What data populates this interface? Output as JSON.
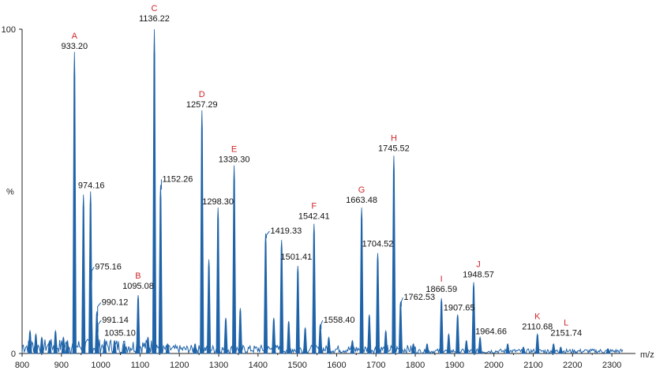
{
  "chart_data": {
    "type": "line",
    "title": "",
    "xlabel": "m/z",
    "ylabel": "%",
    "xlim": [
      800,
      2340
    ],
    "ylim": [
      0,
      100
    ],
    "x_ticks": [
      800,
      900,
      1000,
      1100,
      1200,
      1300,
      1400,
      1500,
      1600,
      1700,
      1800,
      1900,
      2000,
      2100,
      2200,
      2300
    ],
    "y_ticks": [
      0,
      100
    ],
    "y_mid_label": "%",
    "colors": {
      "trace": "#1f63a8",
      "letter": "#d0262b",
      "axis": "#222222"
    },
    "peaks": [
      {
        "mz": 933.2,
        "label": "933.20",
        "letter": "A",
        "intensity": 93
      },
      {
        "mz": 956.0,
        "label": "",
        "letter": "",
        "intensity": 49
      },
      {
        "mz": 974.16,
        "label": "974.16",
        "letter": "",
        "intensity": 50
      },
      {
        "mz": 975.16,
        "label": "975.16",
        "letter": "",
        "intensity": 24
      },
      {
        "mz": 990.12,
        "label": "990.12",
        "letter": "",
        "intensity": 13
      },
      {
        "mz": 991.14,
        "label": "991.14",
        "letter": "",
        "intensity": 8
      },
      {
        "mz": 1035.1,
        "label": "1035.10",
        "letter": "",
        "intensity": 4
      },
      {
        "mz": 1095.08,
        "label": "1095.08",
        "letter": "B",
        "intensity": 18
      },
      {
        "mz": 1136.22,
        "label": "1136.22",
        "letter": "C",
        "intensity": 100
      },
      {
        "mz": 1152.26,
        "label": "1152.26",
        "letter": "",
        "intensity": 52
      },
      {
        "mz": 1257.29,
        "label": "1257.29",
        "letter": "D",
        "intensity": 75
      },
      {
        "mz": 1275.0,
        "label": "",
        "letter": "",
        "intensity": 29
      },
      {
        "mz": 1298.3,
        "label": "1298.30",
        "letter": "",
        "intensity": 45
      },
      {
        "mz": 1339.3,
        "label": "1339.30",
        "letter": "E",
        "intensity": 58
      },
      {
        "mz": 1419.33,
        "label": "1419.33",
        "letter": "",
        "intensity": 37
      },
      {
        "mz": 1460.0,
        "label": "",
        "letter": "",
        "intensity": 35
      },
      {
        "mz": 1501.41,
        "label": "1501.41",
        "letter": "",
        "intensity": 27
      },
      {
        "mz": 1542.41,
        "label": "1542.41",
        "letter": "F",
        "intensity": 40
      },
      {
        "mz": 1558.4,
        "label": "1558.40",
        "letter": "",
        "intensity": 9
      },
      {
        "mz": 1663.48,
        "label": "1663.48",
        "letter": "G",
        "intensity": 45
      },
      {
        "mz": 1704.52,
        "label": "1704.52",
        "letter": "",
        "intensity": 31
      },
      {
        "mz": 1745.52,
        "label": "1745.52",
        "letter": "H",
        "intensity": 61
      },
      {
        "mz": 1762.53,
        "label": "1762.53",
        "letter": "",
        "intensity": 16
      },
      {
        "mz": 1866.59,
        "label": "1866.59",
        "letter": "I",
        "intensity": 17
      },
      {
        "mz": 1907.65,
        "label": "1907.65",
        "letter": "",
        "intensity": 12
      },
      {
        "mz": 1948.57,
        "label": "1948.57",
        "letter": "J",
        "intensity": 22
      },
      {
        "mz": 1964.66,
        "label": "1964.66",
        "letter": "",
        "intensity": 5
      },
      {
        "mz": 2110.68,
        "label": "2110.68",
        "letter": "K",
        "intensity": 6
      },
      {
        "mz": 2151.74,
        "label": "2151.74",
        "letter": "L",
        "intensity": 3
      }
    ],
    "minor_peaks": [
      {
        "mz": 820,
        "intensity": 7
      },
      {
        "mz": 835,
        "intensity": 6
      },
      {
        "mz": 850,
        "intensity": 5
      },
      {
        "mz": 870,
        "intensity": 4
      },
      {
        "mz": 885,
        "intensity": 7
      },
      {
        "mz": 905,
        "intensity": 5
      },
      {
        "mz": 915,
        "intensity": 4
      },
      {
        "mz": 1010,
        "intensity": 4
      },
      {
        "mz": 1060,
        "intensity": 3
      },
      {
        "mz": 1120,
        "intensity": 5
      },
      {
        "mz": 1170,
        "intensity": 3
      },
      {
        "mz": 1240,
        "intensity": 3
      },
      {
        "mz": 1318,
        "intensity": 11
      },
      {
        "mz": 1355,
        "intensity": 14
      },
      {
        "mz": 1440,
        "intensity": 11
      },
      {
        "mz": 1478,
        "intensity": 10
      },
      {
        "mz": 1520,
        "intensity": 8
      },
      {
        "mz": 1580,
        "intensity": 5
      },
      {
        "mz": 1640,
        "intensity": 4
      },
      {
        "mz": 1683,
        "intensity": 12
      },
      {
        "mz": 1725,
        "intensity": 7
      },
      {
        "mz": 1795,
        "intensity": 3
      },
      {
        "mz": 1830,
        "intensity": 3
      },
      {
        "mz": 1885,
        "intensity": 6
      },
      {
        "mz": 1930,
        "intensity": 4
      },
      {
        "mz": 2035,
        "intensity": 3
      },
      {
        "mz": 2075,
        "intensity": 2
      },
      {
        "mz": 2170,
        "intensity": 2
      },
      {
        "mz": 2290,
        "intensity": 1.5
      }
    ]
  }
}
